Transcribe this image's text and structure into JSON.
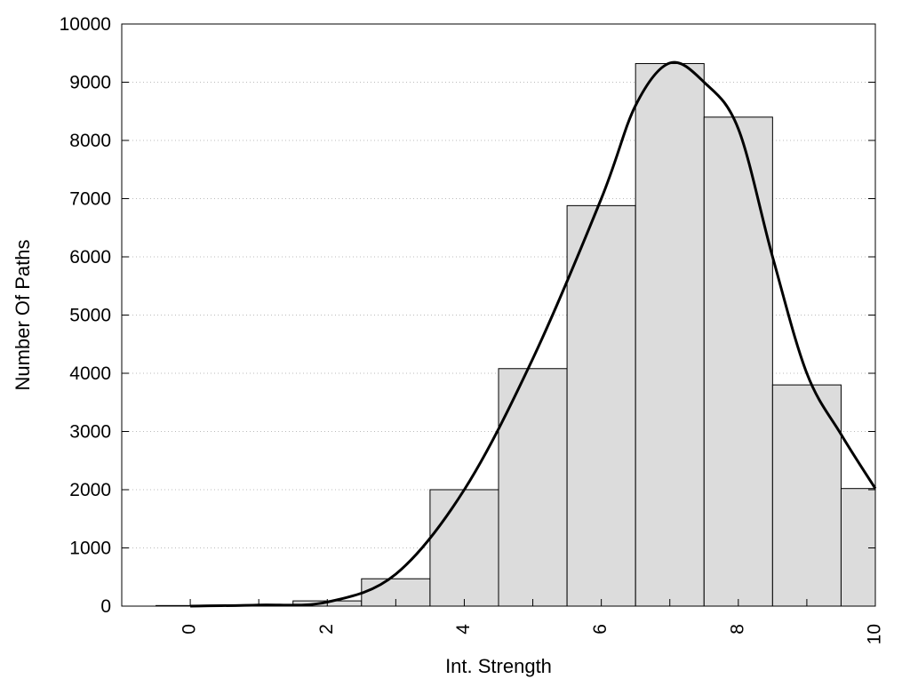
{
  "chart_data": {
    "type": "bar",
    "title": "",
    "xlabel": "Int. Strength",
    "ylabel": "Number Of Paths",
    "xlim": [
      -1,
      10
    ],
    "ylim": [
      0,
      10000
    ],
    "x_ticks": [
      0,
      2,
      4,
      6,
      8,
      10
    ],
    "y_ticks": [
      0,
      1000,
      2000,
      3000,
      4000,
      5000,
      6000,
      7000,
      8000,
      9000,
      10000
    ],
    "x_tick_labels": [
      "0",
      "2",
      "4",
      "6",
      "8",
      "10"
    ],
    "y_tick_labels": [
      "0",
      "1000",
      "2000",
      "3000",
      "4000",
      "5000",
      "6000",
      "7000",
      "8000",
      "9000",
      "10000"
    ],
    "grid": "y-dotted",
    "bins": [
      {
        "x": 0,
        "value": 10
      },
      {
        "x": 1,
        "value": 20
      },
      {
        "x": 2,
        "value": 90
      },
      {
        "x": 3,
        "value": 470
      },
      {
        "x": 4,
        "value": 2000
      },
      {
        "x": 5,
        "value": 4080
      },
      {
        "x": 6,
        "value": 6880
      },
      {
        "x": 7,
        "value": 9320
      },
      {
        "x": 8,
        "value": 8400
      },
      {
        "x": 9,
        "value": 3800
      },
      {
        "x": 10,
        "value": 2020
      }
    ],
    "bin_width": 1,
    "curve": {
      "x": [
        0,
        1,
        2,
        3,
        4,
        5,
        6,
        6.5,
        7,
        7.5,
        8,
        8.5,
        9,
        9.5,
        10
      ],
      "y": [
        0,
        20,
        70,
        550,
        2000,
        4250,
        7000,
        8600,
        9330,
        9000,
        8200,
        6000,
        4000,
        2950,
        2020
      ]
    },
    "bar_color": "#dcdcdc",
    "line_color": "#000000"
  }
}
